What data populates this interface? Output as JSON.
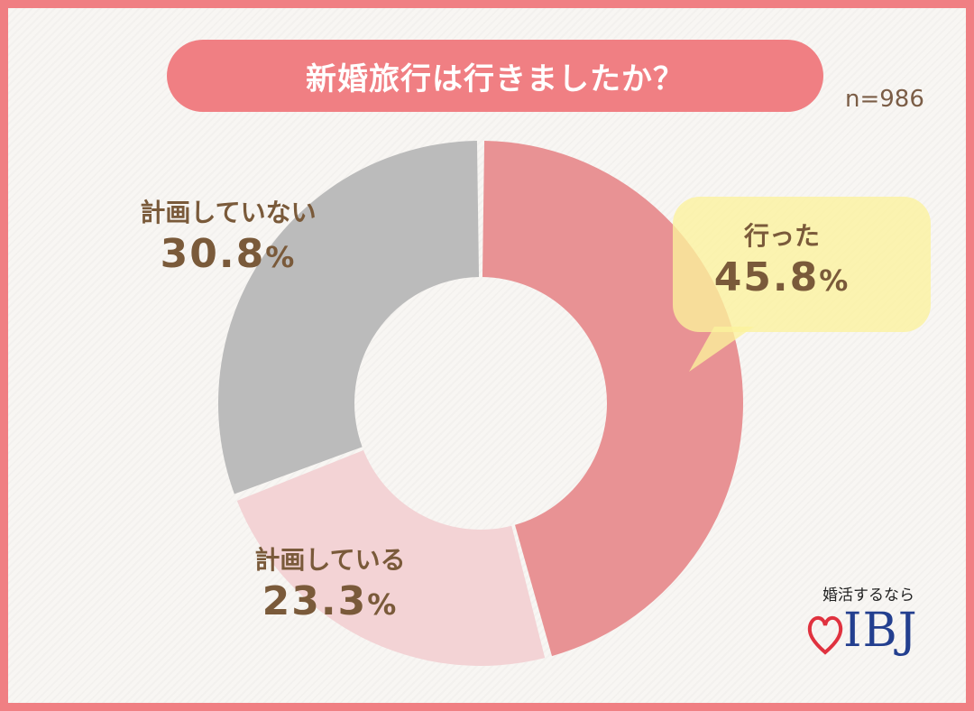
{
  "title": "新婚旅行は行きましたか？",
  "sample_size": "n=986",
  "chart_data": {
    "type": "pie",
    "title": "新婚旅行は行きましたか？",
    "variant": "donut",
    "slices": [
      {
        "label": "行った",
        "value": 45.8,
        "display": "45.8",
        "unit": "%",
        "color": "#e89294"
      },
      {
        "label": "計画している",
        "value": 23.3,
        "display": "23.3",
        "unit": "%",
        "color": "#f3d3d5"
      },
      {
        "label": "計画していない",
        "value": 30.8,
        "display": "30.8",
        "unit": "%",
        "color": "#bbbbbb"
      }
    ],
    "highlight_color": "#fbf29c",
    "text_color": "#7a5a3a"
  },
  "brand": {
    "tagline": "婚活するなら",
    "name": "IBJ",
    "name_color": "#233f8f",
    "heart_color": "#e0323f"
  }
}
